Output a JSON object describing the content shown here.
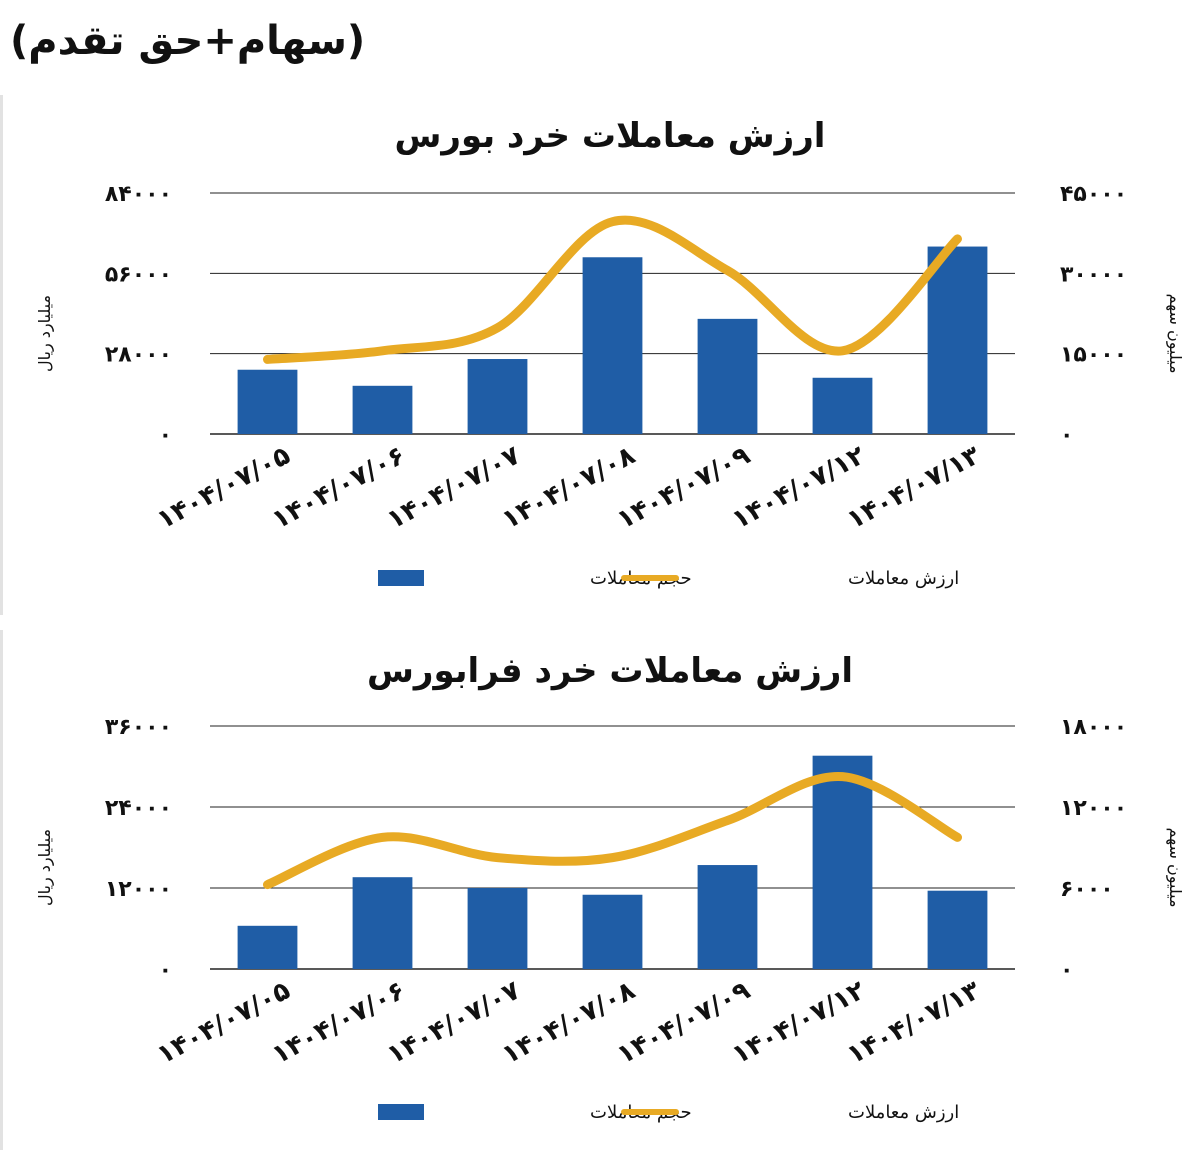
{
  "header": {
    "title": "(سهام+حق تقدم)"
  },
  "colors": {
    "bar": "#1f5da6",
    "line": "#e8aa24",
    "grid": "#222222",
    "text": "#111111"
  },
  "chart_data": [
    {
      "type": "bar",
      "title": "ارزش معاملات خرد بورس",
      "categories": [
        "۱۴۰۴/۰۷/۰۵",
        "۱۴۰۴/۰۷/۰۶",
        "۱۴۰۴/۰۷/۰۷",
        "۱۴۰۴/۰۷/۰۸",
        "۱۴۰۴/۰۷/۰۹",
        "۱۴۰۴/۰۷/۱۲",
        "۱۴۰۴/۰۷/۱۳"
      ],
      "ylabel_left": "میلیارد ریال",
      "ylabel_right": "میلیون سهم",
      "ylim_left": [
        0,
        84000
      ],
      "ylim_right": [
        0,
        45000
      ],
      "yticks_left": [
        "۰",
        "۲۸۰۰۰",
        "۵۶۰۰۰",
        "۸۴۰۰۰"
      ],
      "yticks_right": [
        "۰",
        "۱۵۰۰۰",
        "۳۰۰۰۰",
        "۴۵۰۰۰"
      ],
      "grid": true,
      "legend_position": "bottom",
      "series": [
        {
          "name": "حجم معاملات",
          "type": "bar",
          "axis": "right",
          "values": [
            12000,
            9000,
            14000,
            33000,
            21500,
            10500,
            35000
          ]
        },
        {
          "name": "ارزش معاملات",
          "type": "line",
          "axis": "left",
          "values": [
            26000,
            29000,
            37000,
            74000,
            57000,
            29000,
            68000
          ]
        }
      ]
    },
    {
      "type": "bar",
      "title": "ارزش معاملات خرد فرابورس",
      "categories": [
        "۱۴۰۴/۰۷/۰۵",
        "۱۴۰۴/۰۷/۰۶",
        "۱۴۰۴/۰۷/۰۷",
        "۱۴۰۴/۰۷/۰۸",
        "۱۴۰۴/۰۷/۰۹",
        "۱۴۰۴/۰۷/۱۲",
        "۱۴۰۴/۰۷/۱۳"
      ],
      "ylabel_left": "میلیارد ریال",
      "ylabel_right": "میلیون سهم",
      "ylim_left": [
        0,
        36000
      ],
      "ylim_right": [
        0,
        18000
      ],
      "yticks_left": [
        "۰",
        "۱۲۰۰۰",
        "۲۴۰۰۰",
        "۳۶۰۰۰"
      ],
      "yticks_right": [
        "۰",
        "۶۰۰۰",
        "۱۲۰۰۰",
        "۱۸۰۰۰"
      ],
      "grid": true,
      "legend_position": "bottom",
      "series": [
        {
          "name": "حجم معاملات",
          "type": "bar",
          "axis": "right",
          "values": [
            3200,
            6800,
            6000,
            5500,
            7700,
            15800,
            5800
          ]
        },
        {
          "name": "ارزش معاملات",
          "type": "line",
          "axis": "left",
          "values": [
            12500,
            19500,
            16500,
            16500,
            22000,
            28500,
            19500
          ]
        }
      ]
    }
  ]
}
